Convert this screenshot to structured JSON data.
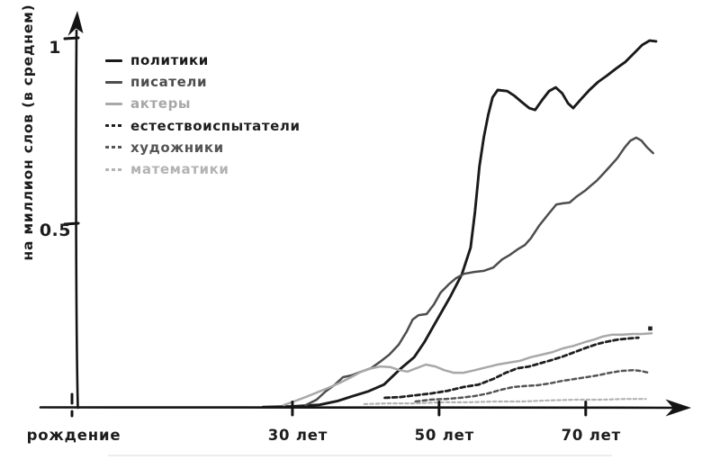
{
  "axes": {
    "y_label": "на миллион слов (в среднем)",
    "y_ticks": [
      {
        "value": 1,
        "label": "1"
      },
      {
        "value": 0.5,
        "label": "0.5"
      }
    ],
    "x_ticks": [
      {
        "age": 30,
        "label": "30 лет"
      },
      {
        "age": 50,
        "label": "50 лет"
      },
      {
        "age": 70,
        "label": "70 лет"
      }
    ],
    "origin_label": "рождение",
    "x_range_years": [
      0,
      84
    ],
    "y_range": [
      0,
      1.08
    ],
    "grid": false
  },
  "chart_data": {
    "type": "line",
    "style": "hand-drawn",
    "x_unit": "возраст (лет)",
    "ylabel": "на миллион слов (в среднем)",
    "legend_position": "top-left",
    "series": [
      {
        "key": "politicians",
        "name": "политики",
        "color": "#1a1a1a",
        "line": "solid",
        "width": 2.9,
        "points": [
          [
            26,
            0.002
          ],
          [
            30,
            0.004
          ],
          [
            33.7,
            0.008
          ],
          [
            36.1,
            0.018
          ],
          [
            38.3,
            0.032
          ],
          [
            40.4,
            0.045
          ],
          [
            42.5,
            0.063
          ],
          [
            44.7,
            0.105
          ],
          [
            46.6,
            0.137
          ],
          [
            48,
            0.178
          ],
          [
            49.4,
            0.227
          ],
          [
            51.5,
            0.3
          ],
          [
            53.1,
            0.361
          ],
          [
            54.3,
            0.434
          ],
          [
            54.9,
            0.532
          ],
          [
            55.5,
            0.654
          ],
          [
            56.1,
            0.732
          ],
          [
            56.7,
            0.793
          ],
          [
            57.3,
            0.841
          ],
          [
            58,
            0.861
          ],
          [
            59.3,
            0.858
          ],
          [
            60.3,
            0.845
          ],
          [
            61.3,
            0.828
          ],
          [
            62.3,
            0.812
          ],
          [
            63.1,
            0.807
          ],
          [
            64.1,
            0.835
          ],
          [
            65,
            0.858
          ],
          [
            65.9,
            0.868
          ],
          [
            66.8,
            0.852
          ],
          [
            67.6,
            0.825
          ],
          [
            68.3,
            0.812
          ],
          [
            69.3,
            0.835
          ],
          [
            70.5,
            0.861
          ],
          [
            71.7,
            0.883
          ],
          [
            72.9,
            0.9
          ],
          [
            74.2,
            0.92
          ],
          [
            75.4,
            0.937
          ],
          [
            76.6,
            0.961
          ],
          [
            77.7,
            0.983
          ],
          [
            78.7,
            0.995
          ],
          [
            79.6,
            0.993
          ]
        ]
      },
      {
        "key": "writers",
        "name": "писатели",
        "color": "#4d4d4d",
        "line": "solid",
        "width": 2.5,
        "points": [
          [
            31.8,
            0.007
          ],
          [
            33.3,
            0.022
          ],
          [
            34.5,
            0.044
          ],
          [
            35.8,
            0.063
          ],
          [
            36.9,
            0.083
          ],
          [
            38.1,
            0.088
          ],
          [
            39.4,
            0.098
          ],
          [
            40.7,
            0.107
          ],
          [
            41.9,
            0.124
          ],
          [
            43.2,
            0.144
          ],
          [
            44.5,
            0.171
          ],
          [
            45.6,
            0.207
          ],
          [
            46.4,
            0.239
          ],
          [
            47.2,
            0.251
          ],
          [
            48.3,
            0.254
          ],
          [
            49.3,
            0.28
          ],
          [
            50.2,
            0.312
          ],
          [
            51.3,
            0.334
          ],
          [
            52.3,
            0.351
          ],
          [
            53.4,
            0.363
          ],
          [
            54.8,
            0.368
          ],
          [
            56.1,
            0.371
          ],
          [
            57.4,
            0.38
          ],
          [
            58.6,
            0.402
          ],
          [
            59.7,
            0.415
          ],
          [
            60.7,
            0.429
          ],
          [
            61.7,
            0.441
          ],
          [
            62.5,
            0.459
          ],
          [
            63.7,
            0.495
          ],
          [
            65,
            0.527
          ],
          [
            66,
            0.551
          ],
          [
            66.9,
            0.554
          ],
          [
            67.8,
            0.556
          ],
          [
            68.8,
            0.573
          ],
          [
            69.9,
            0.588
          ],
          [
            70.7,
            0.602
          ],
          [
            71.5,
            0.615
          ],
          [
            72.3,
            0.632
          ],
          [
            73.3,
            0.654
          ],
          [
            74.3,
            0.676
          ],
          [
            75.3,
            0.705
          ],
          [
            76.1,
            0.724
          ],
          [
            76.9,
            0.732
          ],
          [
            77.6,
            0.724
          ],
          [
            78.3,
            0.707
          ],
          [
            79.2,
            0.69
          ]
        ]
      },
      {
        "key": "actors",
        "name": "актеры",
        "color": "#a8a8a8",
        "line": "solid",
        "width": 2.5,
        "points": [
          [
            28.8,
            0.007
          ],
          [
            30.2,
            0.017
          ],
          [
            31.8,
            0.029
          ],
          [
            33.3,
            0.041
          ],
          [
            34.9,
            0.054
          ],
          [
            36.5,
            0.068
          ],
          [
            38,
            0.083
          ],
          [
            39.4,
            0.098
          ],
          [
            40.8,
            0.107
          ],
          [
            42,
            0.112
          ],
          [
            43.4,
            0.11
          ],
          [
            44.6,
            0.102
          ],
          [
            45.7,
            0.098
          ],
          [
            46.9,
            0.107
          ],
          [
            48.2,
            0.117
          ],
          [
            49.5,
            0.112
          ],
          [
            50.7,
            0.102
          ],
          [
            52,
            0.095
          ],
          [
            53.3,
            0.095
          ],
          [
            54.9,
            0.102
          ],
          [
            56.5,
            0.11
          ],
          [
            58,
            0.117
          ],
          [
            59.4,
            0.122
          ],
          [
            61,
            0.127
          ],
          [
            62.5,
            0.137
          ],
          [
            64,
            0.144
          ],
          [
            65.5,
            0.151
          ],
          [
            66.9,
            0.161
          ],
          [
            68.4,
            0.168
          ],
          [
            69.9,
            0.178
          ],
          [
            71.2,
            0.185
          ],
          [
            72.3,
            0.193
          ],
          [
            73.6,
            0.198
          ],
          [
            75,
            0.198
          ],
          [
            76.4,
            0.2
          ],
          [
            77.7,
            0.2
          ],
          [
            79,
            0.202
          ]
        ]
      },
      {
        "key": "naturalists",
        "name": "естествоиспытатели",
        "color": "#1f1f1f",
        "line": "dashed",
        "dash": "5 3.5",
        "width": 2.8,
        "end_dot": [
          78.8,
          0.215
        ],
        "points": [
          [
            42.6,
            0.027
          ],
          [
            44.7,
            0.029
          ],
          [
            46.8,
            0.034
          ],
          [
            49,
            0.039
          ],
          [
            51.2,
            0.046
          ],
          [
            53.3,
            0.056
          ],
          [
            55.4,
            0.063
          ],
          [
            57.4,
            0.078
          ],
          [
            59.1,
            0.095
          ],
          [
            60.7,
            0.107
          ],
          [
            62.3,
            0.112
          ],
          [
            63.7,
            0.12
          ],
          [
            65.3,
            0.129
          ],
          [
            66.9,
            0.139
          ],
          [
            68.5,
            0.151
          ],
          [
            70.1,
            0.163
          ],
          [
            71.6,
            0.173
          ],
          [
            73.1,
            0.18
          ],
          [
            74.5,
            0.185
          ],
          [
            76,
            0.188
          ],
          [
            77.2,
            0.19
          ]
        ]
      },
      {
        "key": "artists",
        "name": "художники",
        "color": "#555555",
        "line": "dashed",
        "dash": "4.5 3.5",
        "width": 2.5,
        "points": [
          [
            46.8,
            0.017
          ],
          [
            48.8,
            0.022
          ],
          [
            50.9,
            0.024
          ],
          [
            52.9,
            0.027
          ],
          [
            54.9,
            0.032
          ],
          [
            56.7,
            0.039
          ],
          [
            58.5,
            0.049
          ],
          [
            60.1,
            0.056
          ],
          [
            61.7,
            0.059
          ],
          [
            63.4,
            0.061
          ],
          [
            65.1,
            0.066
          ],
          [
            66.8,
            0.073
          ],
          [
            68.5,
            0.078
          ],
          [
            70.1,
            0.083
          ],
          [
            71.7,
            0.088
          ],
          [
            73.3,
            0.095
          ],
          [
            74.9,
            0.1
          ],
          [
            76.4,
            0.102
          ],
          [
            77.5,
            0.1
          ],
          [
            78.6,
            0.095
          ]
        ]
      },
      {
        "key": "mathematicians",
        "name": "математики",
        "color": "#b3b3b3",
        "line": "dashed",
        "dash": "3.5 3",
        "width": 2.2,
        "points": [
          [
            39.8,
            0.01
          ],
          [
            42.9,
            0.012
          ],
          [
            46.6,
            0.012
          ],
          [
            50.2,
            0.015
          ],
          [
            53.9,
            0.015
          ],
          [
            57.6,
            0.017
          ],
          [
            61.3,
            0.017
          ],
          [
            65,
            0.02
          ],
          [
            68.7,
            0.022
          ],
          [
            72.3,
            0.022
          ],
          [
            75.4,
            0.024
          ],
          [
            78.2,
            0.024
          ]
        ]
      }
    ]
  }
}
